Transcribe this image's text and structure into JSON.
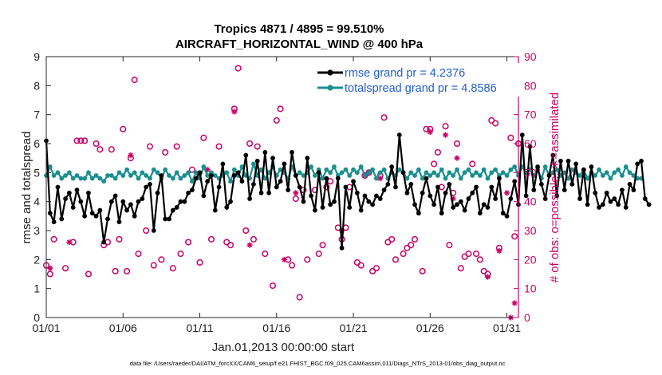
{
  "chart_data": {
    "type": "line",
    "title_line1": "Tropics 4871 / 4895 = 99.510%",
    "title_line2": "AIRCRAFT_HORIZONTAL_WIND @ 400 hPa",
    "xlabel": "Jan.01,2013 00:00:00 start",
    "ylabel_left": "rmse and totalspread",
    "ylabel_right": "# of obs: o=possible; ∗=assimilated",
    "footnote": "data file: /Users/raeder/DAI/ATM_forcXX/CAM6_setup/f.e21.FHIST_BGC.f09_025.CAM6assim.011/Diags_NTrS_2013-01/obs_diag_output.nc",
    "xlim": [
      0,
      30.75
    ],
    "ylim_left": [
      0,
      9
    ],
    "ylim_right": [
      0,
      90
    ],
    "x_ticks": [
      0,
      5,
      10,
      15,
      20,
      25,
      30
    ],
    "x_tick_labels": [
      "01/01",
      "01/06",
      "01/11",
      "01/16",
      "01/21",
      "01/26",
      "01/31"
    ],
    "y_ticks_left": [
      "0",
      "1",
      "2",
      "3",
      "4",
      "5",
      "6",
      "7",
      "8",
      "9"
    ],
    "y_ticks_right": [
      "0",
      "10",
      "20",
      "30",
      "40",
      "50",
      "60",
      "70",
      "80",
      "90"
    ],
    "x_step_days": 0.25,
    "series": [
      {
        "name": "rmse grand pr = 4.2376",
        "color": "#000000",
        "axis": "left",
        "values": [
          6.1,
          3.6,
          3.3,
          4.5,
          3.4,
          4.1,
          4.3,
          3.8,
          4.4,
          4.0,
          3.5,
          4.3,
          3.6,
          3.5,
          3.7,
          2.6,
          3.4,
          4.0,
          4.2,
          3.3,
          4.0,
          3.7,
          3.9,
          3.5,
          4.0,
          4.1,
          4.5,
          4.6,
          3.0,
          4.3,
          4.9,
          3.4,
          3.4,
          3.7,
          3.8,
          4.0,
          4.0,
          4.3,
          4.4,
          4.8,
          5.0,
          4.2,
          4.7,
          4.9,
          3.7,
          4.5,
          5.3,
          3.8,
          4.0,
          4.9,
          5.0,
          4.7,
          5.6,
          4.1,
          4.6,
          5.4,
          4.3,
          5.7,
          4.3,
          5.5,
          4.5,
          4.7,
          5.3,
          4.4,
          5.7,
          4.9,
          4.5,
          4.0,
          5.5,
          4.2,
          3.7,
          5.0,
          3.8,
          4.8,
          3.9,
          4.0,
          4.8,
          2.4,
          4.5,
          3.8,
          4.7,
          4.3,
          3.7,
          4.2,
          4.0,
          3.9,
          4.2,
          4.1,
          4.4,
          4.6,
          5.2,
          4.5,
          6.3,
          5.0,
          4.3,
          4.6,
          3.9,
          3.6,
          4.3,
          4.8,
          4.2,
          3.9,
          4.5,
          3.6,
          4.3,
          4.6,
          3.8,
          3.9,
          4.0,
          3.7,
          4.1,
          4.3,
          4.5,
          3.6,
          3.9,
          3.8,
          4.5,
          4.1,
          4.8,
          3.6,
          3.5,
          4.1,
          4.7,
          3.9,
          6.3,
          4.2,
          5.9,
          4.4,
          5.2,
          4.6,
          4.1,
          4.9,
          5.6,
          4.2,
          5.4,
          4.4,
          5.4,
          4.6,
          5.3,
          4.1,
          5.1,
          3.9,
          5.2,
          4.3,
          3.8,
          3.9,
          4.3,
          4.0,
          4.1,
          3.9,
          4.4,
          3.8,
          4.6,
          4.4,
          5.3,
          5.4,
          4.1,
          3.9
        ]
      },
      {
        "name": "totalspread grand pr = 4.8586",
        "color": "#1a8f8f",
        "axis": "left",
        "values": [
          4.9,
          5.2,
          4.9,
          5.0,
          4.8,
          4.9,
          5.0,
          4.8,
          4.9,
          4.8,
          4.8,
          5.0,
          4.8,
          4.9,
          4.8,
          4.7,
          4.9,
          4.9,
          4.8,
          5.0,
          4.9,
          5.1,
          4.9,
          5.0,
          4.8,
          5.0,
          4.9,
          4.8,
          5.1,
          5.0,
          4.8,
          5.1,
          4.9,
          4.8,
          5.0,
          4.8,
          4.9,
          5.0,
          4.7,
          5.0,
          4.8,
          5.2,
          4.9,
          5.0,
          4.9,
          4.8,
          4.9,
          5.0,
          4.7,
          5.1,
          4.9,
          5.2,
          4.9,
          4.8,
          5.3,
          4.9,
          5.1,
          4.8,
          5.0,
          5.2,
          4.9,
          5.1,
          5.0,
          4.8,
          5.2,
          4.9,
          5.0,
          4.9,
          5.0,
          5.2,
          4.9,
          5.1,
          4.8,
          5.1,
          5.0,
          5.2,
          4.9,
          5.0,
          5.1,
          4.9,
          5.1,
          5.0,
          5.2,
          4.9,
          5.0,
          5.1,
          4.8,
          5.0,
          5.1,
          4.8,
          5.0,
          4.9,
          5.1,
          5.0,
          4.8,
          5.0,
          4.9,
          5.1,
          4.8,
          5.0,
          4.9,
          5.0,
          4.9,
          5.1,
          4.8,
          5.0,
          4.9,
          5.1,
          4.8,
          5.0,
          5.1,
          4.9,
          5.0,
          4.9,
          5.1,
          4.8,
          5.0,
          5.1,
          4.9,
          5.0,
          4.9,
          5.1,
          5.2,
          4.9,
          5.2,
          5.0,
          5.1,
          4.9,
          5.1,
          4.8,
          5.2,
          4.9,
          5.0,
          5.1,
          4.9,
          5.0,
          4.8,
          5.1,
          5.0,
          4.9,
          5.1,
          4.8,
          5.0,
          4.9,
          5.1,
          4.9,
          5.0,
          4.8,
          5.0,
          5.1,
          4.9,
          5.2,
          5.0,
          4.9,
          4.8,
          4.8
        ]
      }
    ],
    "obs_counts": {
      "color": "#cc0066",
      "axis": "right",
      "possible": [
        [
          0,
          18
        ],
        [
          0.25,
          15
        ],
        [
          0.5,
          27
        ],
        [
          1.25,
          17
        ],
        [
          1.75,
          26
        ],
        [
          2,
          61
        ],
        [
          2.25,
          61
        ],
        [
          2.5,
          61
        ],
        [
          2.75,
          15
        ],
        [
          3.25,
          60
        ],
        [
          3.5,
          58
        ],
        [
          3.75,
          25
        ],
        [
          4,
          26
        ],
        [
          4.25,
          58
        ],
        [
          4.5,
          16
        ],
        [
          4.75,
          27
        ],
        [
          5,
          65
        ],
        [
          5.25,
          16
        ],
        [
          5.5,
          55
        ],
        [
          5.75,
          82
        ],
        [
          6,
          22
        ],
        [
          6.5,
          30
        ],
        [
          6.75,
          59
        ],
        [
          7,
          18
        ],
        [
          7.5,
          20
        ],
        [
          7.75,
          57
        ],
        [
          8.25,
          17
        ],
        [
          8.5,
          59
        ],
        [
          8.75,
          22
        ],
        [
          9.25,
          26
        ],
        [
          9.5,
          51
        ],
        [
          10,
          19
        ],
        [
          10.25,
          62
        ],
        [
          10.75,
          27
        ],
        [
          11.25,
          59
        ],
        [
          11.75,
          26
        ],
        [
          12,
          25
        ],
        [
          12.25,
          72
        ],
        [
          12.5,
          86
        ],
        [
          13,
          30
        ],
        [
          13.25,
          60
        ],
        [
          13.5,
          27
        ],
        [
          13.75,
          59
        ],
        [
          14.25,
          22
        ],
        [
          14.75,
          11
        ],
        [
          15,
          68
        ],
        [
          15.25,
          72
        ],
        [
          15.75,
          20
        ],
        [
          16,
          18
        ],
        [
          16.25,
          41
        ],
        [
          16.5,
          7
        ],
        [
          16.75,
          44
        ],
        [
          17,
          20
        ],
        [
          17.5,
          44
        ],
        [
          17.75,
          22
        ],
        [
          18,
          25
        ],
        [
          18.25,
          45
        ],
        [
          18.5,
          47
        ],
        [
          19,
          31
        ],
        [
          19.25,
          27
        ],
        [
          19.5,
          31
        ],
        [
          19.75,
          45
        ],
        [
          20.25,
          19
        ],
        [
          20.5,
          18
        ],
        [
          20.75,
          49
        ],
        [
          21,
          50
        ],
        [
          21.25,
          16
        ],
        [
          21.5,
          17
        ],
        [
          21.75,
          49
        ],
        [
          22,
          69
        ],
        [
          22.25,
          26
        ],
        [
          22.5,
          27
        ],
        [
          22.75,
          20
        ],
        [
          23.25,
          22
        ],
        [
          23.5,
          24
        ],
        [
          23.75,
          25
        ],
        [
          24,
          27
        ],
        [
          24.5,
          16
        ],
        [
          24.75,
          65
        ],
        [
          25,
          65
        ],
        [
          25.25,
          53
        ],
        [
          25.5,
          57
        ],
        [
          25.75,
          45
        ],
        [
          26,
          66
        ],
        [
          26.25,
          25
        ],
        [
          26.5,
          43
        ],
        [
          26.75,
          60
        ],
        [
          27,
          17
        ],
        [
          27.25,
          21
        ],
        [
          27.5,
          22
        ],
        [
          27.75,
          53
        ],
        [
          28,
          22
        ],
        [
          28.25,
          20
        ],
        [
          28.5,
          16
        ],
        [
          28.75,
          15
        ],
        [
          29,
          68
        ],
        [
          29.25,
          67
        ],
        [
          29.5,
          24
        ],
        [
          30.25,
          62
        ],
        [
          30.5,
          28
        ],
        [
          30.75,
          60
        ]
      ],
      "assimilated": [
        [
          0.25,
          17
        ],
        [
          1.5,
          26
        ],
        [
          5.5,
          56
        ],
        [
          10.5,
          51
        ],
        [
          12.25,
          71
        ],
        [
          13.25,
          25
        ],
        [
          15.5,
          20
        ],
        [
          16.25,
          43
        ],
        [
          19.25,
          30
        ],
        [
          21.75,
          48
        ],
        [
          25,
          64
        ],
        [
          26,
          63
        ],
        [
          26.5,
          41
        ],
        [
          26.75,
          55
        ],
        [
          28.75,
          14
        ],
        [
          29.5,
          23
        ],
        [
          30,
          43
        ],
        [
          30.25,
          0
        ],
        [
          30.5,
          5
        ]
      ]
    }
  }
}
